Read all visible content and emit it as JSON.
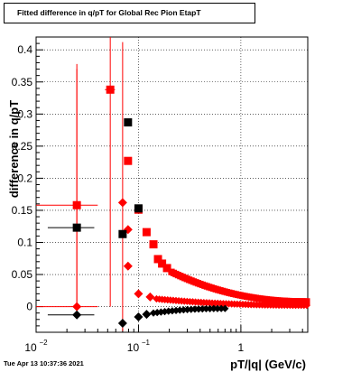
{
  "chart_data": {
    "type": "scatter",
    "title": "Fitted difference in q/pT for Global Rec Pion EtapT",
    "xlabel": "pT/|q| (GeV/c)",
    "ylabel": "difference in q/pT",
    "xscale": "log",
    "xlim": [
      0.01,
      4.5
    ],
    "ylim": [
      -0.04,
      0.42
    ],
    "grid": true,
    "x_tick_labels": [
      {
        "v": 0.01,
        "base": "10",
        "exp": "−2"
      },
      {
        "v": 0.1,
        "base": "10",
        "exp": "−1"
      },
      {
        "v": 1,
        "base": "1",
        "exp": ""
      }
    ],
    "y_ticks": [
      0,
      0.05,
      0.1,
      0.15,
      0.2,
      0.25,
      0.3,
      0.35,
      0.4
    ],
    "y_tick_labels": [
      "0",
      "0.05",
      "0.1",
      "0.15",
      "0.2",
      "0.25",
      "0.3",
      "0.35",
      "0.4"
    ],
    "series": [
      {
        "color": "#ff0000",
        "marker": "square",
        "points": [
          {
            "x": 0.025,
            "y": 0.158,
            "xerr": 0.015,
            "yerr": [
              0.158,
              0.22
            ]
          },
          {
            "x": 0.053,
            "y": 0.338,
            "xerr": 0.006,
            "yerr": [
              0.338,
              0.3
            ]
          },
          {
            "x": 0.079,
            "y": 0.227
          },
          {
            "x": 0.1,
            "y": 0.151
          },
          {
            "x": 0.12,
            "y": 0.116
          },
          {
            "x": 0.14,
            "y": 0.097
          },
          {
            "x": 0.155,
            "y": 0.074
          },
          {
            "x": 0.17,
            "y": 0.067
          },
          {
            "x": 0.19,
            "y": 0.06
          }
        ],
        "tail": {
          "x0": 0.21,
          "x1": 4.4,
          "n": 62,
          "amp": 0.054,
          "floor": 0.008
        }
      },
      {
        "color": "#ff0000",
        "marker": "diamond",
        "points": [
          {
            "x": 0.025,
            "y": 0.0,
            "xerr": 0.015,
            "yerr": [
              0.0,
              0.37
            ]
          },
          {
            "x": 0.07,
            "y": 0.162,
            "xerr": 0.004,
            "yerr": [
              0.2,
              0.25
            ]
          },
          {
            "x": 0.079,
            "y": 0.12
          },
          {
            "x": 0.079,
            "y": 0.063
          },
          {
            "x": 0.1,
            "y": 0.02
          },
          {
            "x": 0.13,
            "y": 0.015
          }
        ],
        "tail": {
          "x0": 0.15,
          "x1": 4.4,
          "n": 55,
          "amp": 0.012,
          "floor": 0.002
        }
      },
      {
        "color": "#000000",
        "marker": "square",
        "points": [
          {
            "x": 0.025,
            "y": 0.123,
            "xerr": 0.012
          },
          {
            "x": 0.07,
            "y": 0.113
          },
          {
            "x": 0.079,
            "y": 0.287
          },
          {
            "x": 0.1,
            "y": 0.153
          }
        ]
      },
      {
        "color": "#000000",
        "marker": "diamond",
        "points": [
          {
            "x": 0.025,
            "y": -0.013,
            "xerr": 0.012
          },
          {
            "x": 0.07,
            "y": -0.026
          },
          {
            "x": 0.1,
            "y": -0.016
          },
          {
            "x": 0.12,
            "y": -0.012
          }
        ],
        "tail": {
          "x0": 0.14,
          "x1": 0.7,
          "n": 20,
          "amp": -0.01,
          "floor": -0.003
        }
      }
    ]
  },
  "footer": "Tue Apr 13 10:37:36 2021"
}
